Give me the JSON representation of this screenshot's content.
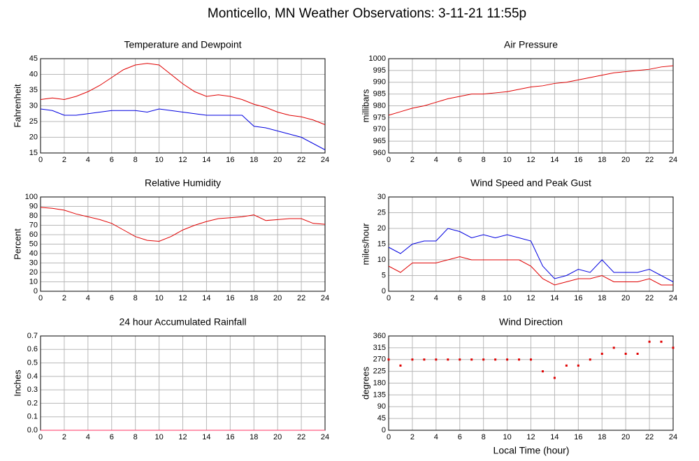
{
  "title": "Monticello, MN Weather Observations: 3-11-21 11:55p",
  "xlabel": "Local Time (hour)",
  "chart_data": [
    {
      "type": "line",
      "title": "Temperature and Dewpoint",
      "ylabel": "Fahrenheit",
      "x": [
        0,
        1,
        2,
        3,
        4,
        5,
        6,
        7,
        8,
        9,
        10,
        11,
        12,
        13,
        14,
        15,
        16,
        17,
        18,
        19,
        20,
        21,
        22,
        23,
        24
      ],
      "series": [
        {
          "color": "#e00000",
          "values": [
            32,
            32.5,
            32,
            33,
            34.5,
            36.5,
            39,
            41.5,
            43,
            43.5,
            43,
            40,
            37,
            34.5,
            33,
            33.5,
            33,
            32,
            30.5,
            29.5,
            28,
            27,
            26.5,
            25.5,
            24
          ]
        },
        {
          "color": "#0000e0",
          "values": [
            29,
            28.5,
            27,
            27,
            27.5,
            28,
            28.5,
            28.5,
            28.5,
            28,
            29,
            28.5,
            28,
            27.5,
            27,
            27,
            27,
            27,
            23.5,
            23,
            22,
            21,
            20,
            18,
            16
          ]
        }
      ],
      "xlim": [
        0,
        24
      ],
      "xticks": [
        0,
        2,
        4,
        6,
        8,
        10,
        12,
        14,
        16,
        18,
        20,
        22,
        24
      ],
      "ylim": [
        15,
        45
      ],
      "yticks": [
        15,
        20,
        25,
        30,
        35,
        40,
        45
      ],
      "grid": true
    },
    {
      "type": "line",
      "title": "Air Pressure",
      "ylabel": "millibars",
      "x": [
        0,
        1,
        2,
        3,
        4,
        5,
        6,
        7,
        8,
        9,
        10,
        11,
        12,
        13,
        14,
        15,
        16,
        17,
        18,
        19,
        20,
        21,
        22,
        23,
        24
      ],
      "series": [
        {
          "color": "#e00000",
          "values": [
            976,
            977.5,
            979,
            980,
            981.5,
            983,
            984,
            985,
            985,
            985.5,
            986,
            987,
            988,
            988.5,
            989.5,
            990,
            991,
            992,
            993,
            994,
            994.5,
            995,
            995.5,
            996.5,
            997
          ]
        }
      ],
      "xlim": [
        0,
        24
      ],
      "xticks": [
        0,
        2,
        4,
        6,
        8,
        10,
        12,
        14,
        16,
        18,
        20,
        22,
        24
      ],
      "ylim": [
        960,
        1000
      ],
      "yticks": [
        960,
        965,
        970,
        975,
        980,
        985,
        990,
        995,
        1000
      ],
      "grid": true
    },
    {
      "type": "line",
      "title": "Relative Humidity",
      "ylabel": "Percent",
      "x": [
        0,
        1,
        2,
        3,
        4,
        5,
        6,
        7,
        8,
        9,
        10,
        11,
        12,
        13,
        14,
        15,
        16,
        17,
        18,
        19,
        20,
        21,
        22,
        23,
        24
      ],
      "series": [
        {
          "color": "#e00000",
          "values": [
            89,
            88,
            86,
            82,
            79,
            76,
            72,
            65,
            58,
            54,
            53,
            58,
            65,
            70,
            74,
            77,
            78,
            79,
            81,
            75,
            76,
            77,
            77,
            72,
            71
          ]
        }
      ],
      "xlim": [
        0,
        24
      ],
      "xticks": [
        0,
        2,
        4,
        6,
        8,
        10,
        12,
        14,
        16,
        18,
        20,
        22,
        24
      ],
      "ylim": [
        0,
        100
      ],
      "yticks": [
        0,
        10,
        20,
        30,
        40,
        50,
        60,
        70,
        80,
        90,
        100
      ],
      "grid": true
    },
    {
      "type": "line",
      "title": "Wind Speed and Peak Gust",
      "ylabel": "miles/hour",
      "x": [
        0,
        1,
        2,
        3,
        4,
        5,
        6,
        7,
        8,
        9,
        10,
        11,
        12,
        13,
        14,
        15,
        16,
        17,
        18,
        19,
        20,
        21,
        22,
        23,
        24
      ],
      "series": [
        {
          "color": "#0000e0",
          "values": [
            14,
            12,
            15,
            16,
            16,
            20,
            19,
            17,
            18,
            17,
            18,
            17,
            16,
            8,
            4,
            5,
            7,
            6,
            10,
            6,
            6,
            6,
            7,
            5,
            3
          ]
        },
        {
          "color": "#e00000",
          "values": [
            8,
            6,
            9,
            9,
            9,
            10,
            11,
            10,
            10,
            10,
            10,
            10,
            8,
            4,
            2,
            3,
            4,
            4,
            5,
            3,
            3,
            3,
            4,
            2,
            2
          ]
        }
      ],
      "xlim": [
        0,
        24
      ],
      "xticks": [
        0,
        2,
        4,
        6,
        8,
        10,
        12,
        14,
        16,
        18,
        20,
        22,
        24
      ],
      "ylim": [
        0,
        30
      ],
      "yticks": [
        0,
        5,
        10,
        15,
        20,
        25,
        30
      ],
      "grid": true
    },
    {
      "type": "line",
      "title": "24 hour Accumulated Rainfall",
      "ylabel": "Inches",
      "x": [
        0,
        1,
        2,
        3,
        4,
        5,
        6,
        7,
        8,
        9,
        10,
        11,
        12,
        13,
        14,
        15,
        16,
        17,
        18,
        19,
        20,
        21,
        22,
        23,
        24
      ],
      "series": [
        {
          "color": "#ff3060",
          "values": [
            0,
            0,
            0,
            0,
            0,
            0,
            0,
            0,
            0,
            0,
            0,
            0,
            0,
            0,
            0,
            0,
            0,
            0,
            0,
            0,
            0,
            0,
            0,
            0,
            0
          ]
        }
      ],
      "xlim": [
        0,
        24
      ],
      "xticks": [
        0,
        2,
        4,
        6,
        8,
        10,
        12,
        14,
        16,
        18,
        20,
        22,
        24
      ],
      "ylim": [
        0,
        0.7
      ],
      "yticks": [
        {
          "value": 0,
          "label": "0.0"
        },
        0.1,
        0.2,
        0.3,
        0.4,
        0.5,
        0.6,
        0.7
      ],
      "grid": true
    },
    {
      "type": "scatter",
      "title": "Wind Direction",
      "ylabel": "degrees",
      "x": [
        0,
        1,
        2,
        3,
        4,
        5,
        6,
        7,
        8,
        9,
        10,
        11,
        12,
        13,
        14,
        15,
        16,
        17,
        18,
        19,
        20,
        21,
        22,
        23,
        24
      ],
      "series": [
        {
          "color": "#e00000",
          "values": [
            270,
            247,
            270,
            270,
            270,
            270,
            270,
            270,
            270,
            270,
            270,
            270,
            270,
            225,
            200,
            247,
            247,
            270,
            292,
            315,
            292,
            292,
            338,
            338,
            315
          ]
        }
      ],
      "xlim": [
        0,
        24
      ],
      "xticks": [
        0,
        2,
        4,
        6,
        8,
        10,
        12,
        14,
        16,
        18,
        20,
        22,
        24
      ],
      "ylim": [
        0,
        360
      ],
      "yticks": [
        0,
        45,
        90,
        135,
        180,
        225,
        270,
        315,
        360
      ],
      "grid": true
    }
  ]
}
